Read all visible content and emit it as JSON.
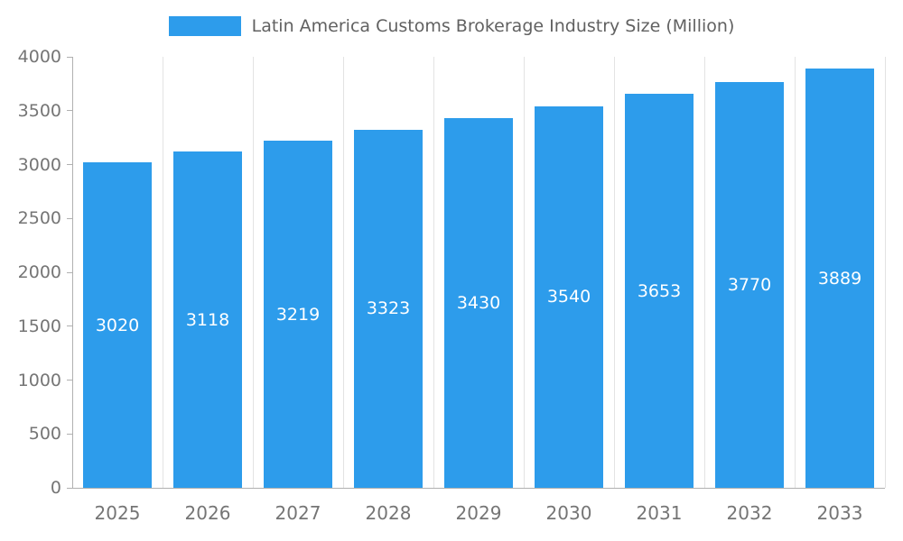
{
  "chart_data": {
    "type": "bar",
    "title": "Latin America Customs Brokerage Industry Size (Million)",
    "categories": [
      "2025",
      "2026",
      "2027",
      "2028",
      "2029",
      "2030",
      "2031",
      "2032",
      "2033"
    ],
    "values": [
      3020,
      3118,
      3219,
      3323,
      3430,
      3540,
      3653,
      3770,
      3889
    ],
    "xlabel": "",
    "ylabel": "",
    "ylim": [
      0,
      4000
    ],
    "ytick_step": 500,
    "legend_position": "top-center",
    "grid": "vertical-only",
    "value_labels": "inside-middle",
    "colors": {
      "bar": "#2d9ceb",
      "value_label": "#ffffff",
      "axis_text": "#757575",
      "title_text": "#616161",
      "grid_line": "#e3e3e3",
      "axis_line": "#b0b0b0"
    }
  }
}
